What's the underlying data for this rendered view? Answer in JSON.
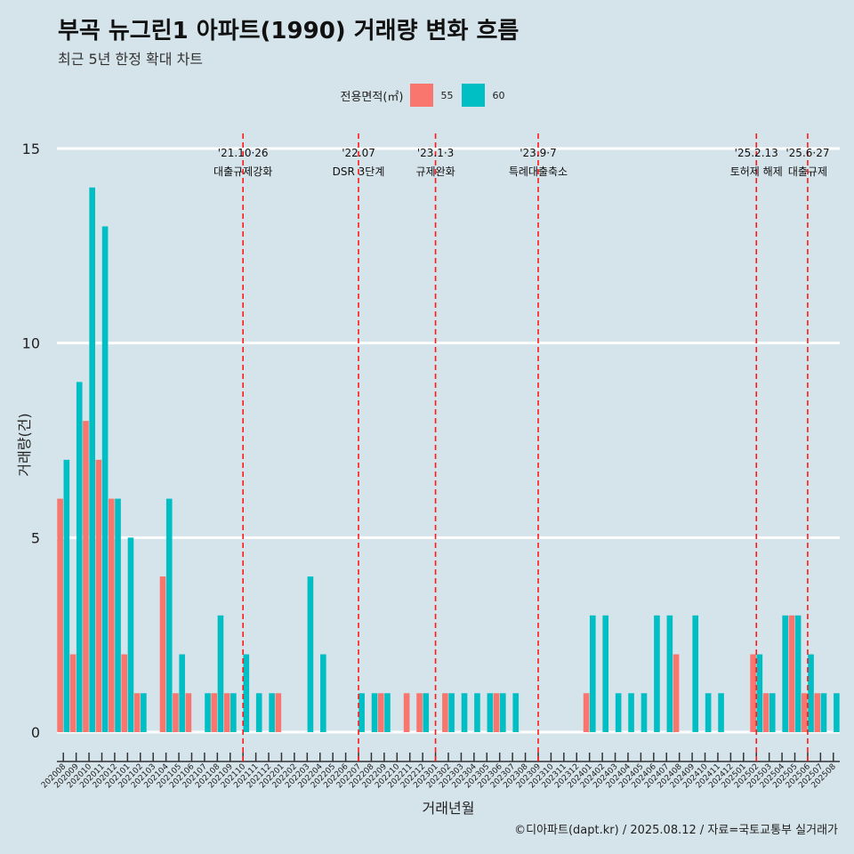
{
  "title": "부곡 뉴그린1 아파트(1990) 거래량 변화 흐름",
  "subtitle": "최근 5년 한정 확대 차트",
  "caption": "©디아파트(dapt.kr) / 2025.08.12 / 자료=국토교통부 실거래가",
  "legend": {
    "title": "전용면적(㎡)",
    "items": [
      {
        "label": "55",
        "color": "#f8766d"
      },
      {
        "label": "60",
        "color": "#00bfc4"
      }
    ]
  },
  "chart_data": {
    "type": "bar",
    "xlabel": "거래년월",
    "ylabel": "거래량(건)",
    "ylim": [
      0,
      15
    ],
    "yticks": [
      0,
      5,
      10,
      15
    ],
    "categories": [
      "202008",
      "202009",
      "202010",
      "202011",
      "202012",
      "202101",
      "202102",
      "202103",
      "202104",
      "202105",
      "202106",
      "202107",
      "202108",
      "202109",
      "202110",
      "202111",
      "202112",
      "202201",
      "202202",
      "202203",
      "202204",
      "202205",
      "202206",
      "202207",
      "202208",
      "202209",
      "202210",
      "202211",
      "202212",
      "202301",
      "202302",
      "202303",
      "202304",
      "202305",
      "202306",
      "202307",
      "202308",
      "202309",
      "202310",
      "202311",
      "202312",
      "202401",
      "202402",
      "202403",
      "202404",
      "202405",
      "202406",
      "202407",
      "202408",
      "202409",
      "202410",
      "202411",
      "202412",
      "202501",
      "202502",
      "202503",
      "202504",
      "202505",
      "202506",
      "202507",
      "202508"
    ],
    "series": [
      {
        "name": "55",
        "color": "#f8766d",
        "values": [
          6,
          2,
          8,
          7,
          6,
          2,
          1,
          0,
          4,
          1,
          1,
          0,
          1,
          1,
          0,
          0,
          0,
          1,
          0,
          0,
          0,
          0,
          0,
          0,
          0,
          1,
          0,
          1,
          1,
          0,
          1,
          0,
          0,
          0,
          1,
          0,
          0,
          0,
          0,
          0,
          0,
          1,
          0,
          0,
          0,
          0,
          0,
          0,
          2,
          0,
          0,
          0,
          0,
          0,
          2,
          1,
          0,
          3,
          1,
          1,
          0
        ]
      },
      {
        "name": "60",
        "color": "#00bfc4",
        "values": [
          7,
          9,
          14,
          13,
          6,
          5,
          1,
          0,
          6,
          2,
          0,
          1,
          3,
          1,
          2,
          1,
          1,
          0,
          0,
          4,
          2,
          0,
          0,
          1,
          1,
          1,
          0,
          0,
          1,
          0,
          1,
          1,
          1,
          1,
          1,
          1,
          0,
          0,
          0,
          0,
          0,
          3,
          3,
          1,
          1,
          1,
          3,
          3,
          0,
          3,
          1,
          1,
          0,
          0,
          2,
          1,
          3,
          3,
          2,
          1,
          1
        ]
      }
    ],
    "annotations": [
      {
        "at": "202110",
        "line1": "'21.10·26",
        "line2": "대출규제강화"
      },
      {
        "at": "202207",
        "line1": "'22.07",
        "line2": "DSR 3단계"
      },
      {
        "at": "202301",
        "line1": "'23.1·3",
        "line2": "규제완화"
      },
      {
        "at": "202309",
        "line1": "'23.9·7",
        "line2": "특례대출축소"
      },
      {
        "at": "202502",
        "line1": "'25.2.13",
        "line2": "토허제 해제"
      },
      {
        "at": "202506",
        "line1": "'25.6·27",
        "line2": "대출규제"
      }
    ],
    "grid": true,
    "legend_position": "top"
  }
}
